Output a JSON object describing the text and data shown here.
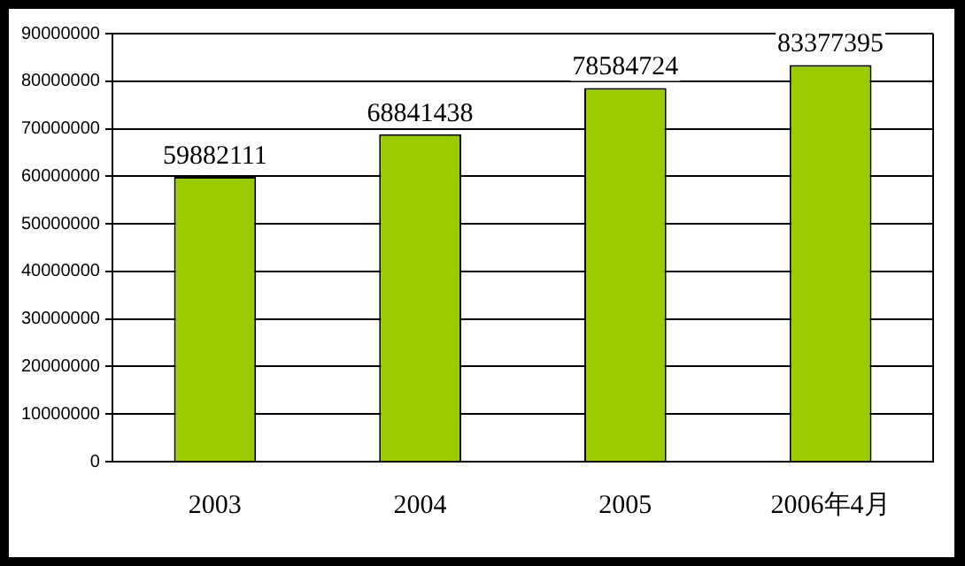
{
  "chart_data": {
    "type": "bar",
    "categories": [
      "2003",
      "2004",
      "2005",
      "2006年4月"
    ],
    "values": [
      59882111,
      68841438,
      78584724,
      83377395
    ],
    "color": "#99cc00",
    "ylim": [
      0,
      90000000
    ],
    "yticks": [
      0,
      10000000,
      20000000,
      30000000,
      40000000,
      50000000,
      60000000,
      70000000,
      80000000,
      90000000
    ],
    "grid": "y",
    "data_labels": true,
    "legend": false
  }
}
